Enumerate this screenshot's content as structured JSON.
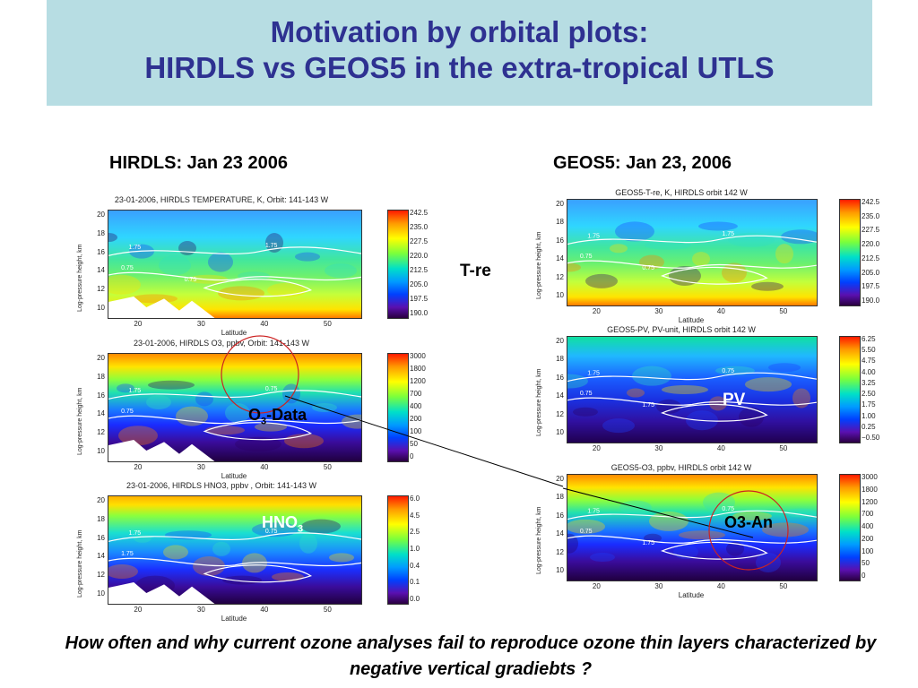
{
  "title": {
    "line1": "Motivation by orbital plots:",
    "line2": "HIRDLS vs GEOS5 in the extra-tropical UTLS"
  },
  "left_heading": "HIRDLS: Jan 23 2006",
  "right_heading": "GEOS5: Jan 23,  2006",
  "annotations": {
    "tre": "T-re",
    "o3data_main": "O",
    "o3data_sub": "3",
    "o3data_rest": "-Data",
    "hno3_main": "HNO",
    "hno3_sub": "3",
    "pv": "PV",
    "o3an": "O3-An"
  },
  "question": "How often and why current ozone analyses fail to reproduce ozone thin layers characterized by negative vertical gradiebts ?",
  "panels": [
    {
      "id": "hirdls-temp",
      "title": "23-01-2006, HIRDLS TEMPERATURE,  K, Orbit: 141-143 W",
      "ylabel": "Log-pressure height, km",
      "xlabel": "Latitude",
      "yticks": [
        "20",
        "18",
        "16",
        "14",
        "12",
        "10"
      ],
      "xticks": [
        "20",
        "30",
        "40",
        "50"
      ],
      "cbar_ticks": [
        "242.5",
        "235.0",
        "227.5",
        "220.0",
        "212.5",
        "205.0",
        "197.5",
        "190.0"
      ],
      "contour_labels": [
        "1.75",
        "0.75",
        "1.75",
        "0.75"
      ]
    },
    {
      "id": "hirdls-o3",
      "title": "23-01-2006, HIRDLS O3, ppbv,  Orbit: 141-143 W",
      "ylabel": "Log-pressure height, km",
      "xlabel": "Latitude",
      "yticks": [
        "20",
        "18",
        "16",
        "14",
        "12",
        "10"
      ],
      "xticks": [
        "20",
        "30",
        "40",
        "50"
      ],
      "cbar_ticks": [
        "3000",
        "1800",
        "1200",
        "700",
        "400",
        "200",
        "100",
        "50",
        "0"
      ],
      "contour_labels": [
        "1.75",
        "0.75",
        "0.75"
      ]
    },
    {
      "id": "hirdls-hno3",
      "title": "23-01-2006, HIRDLS HNO3, ppbv ,  Orbit: 141-143 W",
      "ylabel": "Log-pressure height, km",
      "xlabel": "Latitude",
      "yticks": [
        "20",
        "18",
        "16",
        "14",
        "12",
        "10"
      ],
      "xticks": [
        "20",
        "30",
        "40",
        "50"
      ],
      "cbar_ticks": [
        "6.0",
        "4.5",
        "2.5",
        "1.0",
        "0.4",
        "0.1",
        "0.0"
      ],
      "contour_labels": [
        "1.75",
        "1.75",
        "0.75"
      ]
    },
    {
      "id": "geos5-temp",
      "title": "GEOS5-T-re, K,  HIRDLS orbit 142 W",
      "ylabel": "Log-pressure height, km",
      "xlabel": "Latitude",
      "yticks": [
        "20",
        "18",
        "16",
        "14",
        "12",
        "10"
      ],
      "xticks": [
        "20",
        "30",
        "40",
        "50"
      ],
      "cbar_ticks": [
        "242.5",
        "235.0",
        "227.5",
        "220.0",
        "212.5",
        "205.0",
        "197.5",
        "190.0"
      ],
      "contour_labels": [
        "1.75",
        "0.75",
        "1.75",
        "0.75"
      ]
    },
    {
      "id": "geos5-pv",
      "title": "GEOS5-PV, PV-unit, HIRDLS orbit 142 W",
      "ylabel": "Log-pressure height, km",
      "xlabel": "",
      "yticks": [
        "20",
        "18",
        "16",
        "14",
        "12",
        "10"
      ],
      "xticks": [
        "20",
        "30",
        "40",
        "50"
      ],
      "cbar_ticks": [
        "6.25",
        "5.50",
        "4.75",
        "4.00",
        "3.25",
        "2.50",
        "1.75",
        "1.00",
        "0.25",
        "−0.50"
      ],
      "contour_labels": [
        "1.75",
        "0.75",
        "0.75",
        "1.75"
      ]
    },
    {
      "id": "geos5-o3",
      "title": "GEOS5-O3, ppbv,  HIRDLS orbit 142 W",
      "ylabel": "Log-pressure height, km",
      "xlabel": "Latitude",
      "yticks": [
        "20",
        "18",
        "16",
        "14",
        "12",
        "10"
      ],
      "xticks": [
        "20",
        "30",
        "40",
        "50"
      ],
      "cbar_ticks": [
        "3000",
        "1800",
        "1200",
        "700",
        "400",
        "200",
        "100",
        "50",
        "0"
      ],
      "contour_labels": [
        "1.75",
        "0.75",
        "0.75",
        "1.75"
      ]
    }
  ],
  "colors": {
    "title_band": "#b7dde3",
    "title_text": "#2e3191",
    "annotation_circle": "#cc2222",
    "annotation_label_white": "#ffffff",
    "annotation_label_black": "#000000"
  }
}
